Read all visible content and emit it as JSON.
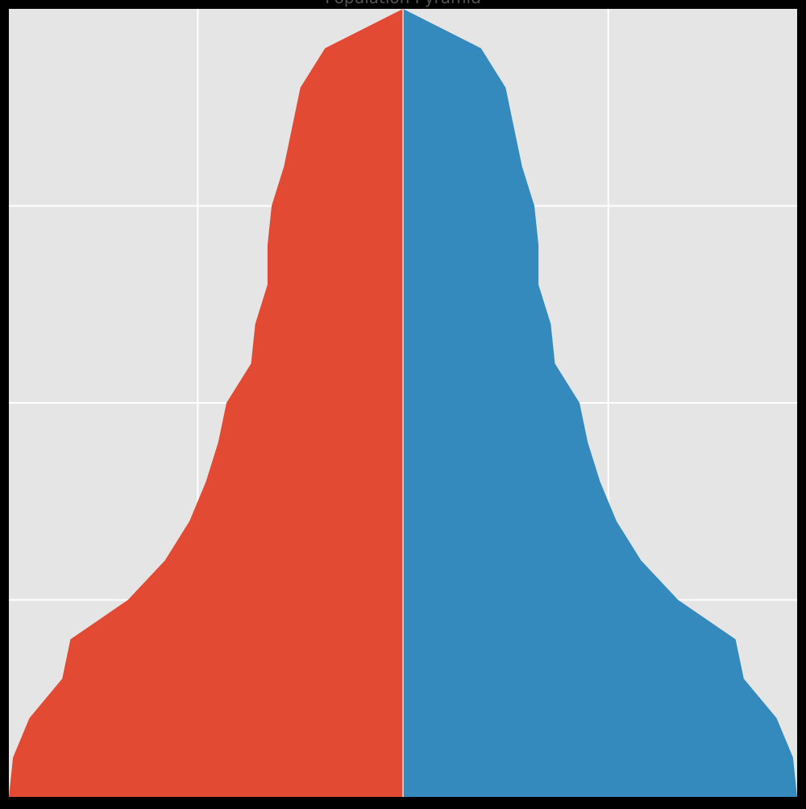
{
  "chart_data": {
    "type": "area",
    "title": "Population Pyramid",
    "orientation": "horizontal",
    "xlabel": "",
    "ylabel": "",
    "xlim": [
      -96,
      96
    ],
    "ylim": [
      0,
      20
    ],
    "grid": true,
    "background": "#e5e5e5",
    "x_grid_values": [
      -50,
      0,
      50
    ],
    "y_grid_values": [
      5,
      10,
      15
    ],
    "y": [
      0,
      1,
      2,
      3,
      4,
      5,
      6,
      7,
      8,
      9,
      10,
      11,
      12,
      13,
      14,
      15,
      16,
      17,
      18,
      19,
      20
    ],
    "series": [
      {
        "color": "#e24a33",
        "side": "left",
        "values": [
          96,
          95,
          91,
          83,
          81,
          67,
          58,
          52,
          48,
          45,
          43,
          37,
          36,
          33,
          33,
          32,
          29,
          27,
          25,
          19,
          0
        ]
      },
      {
        "color": "#348abd",
        "side": "right",
        "values": [
          96,
          95,
          91,
          83,
          81,
          67,
          58,
          52,
          48,
          45,
          43,
          37,
          36,
          33,
          33,
          32,
          29,
          27,
          25,
          19,
          0
        ]
      }
    ]
  }
}
